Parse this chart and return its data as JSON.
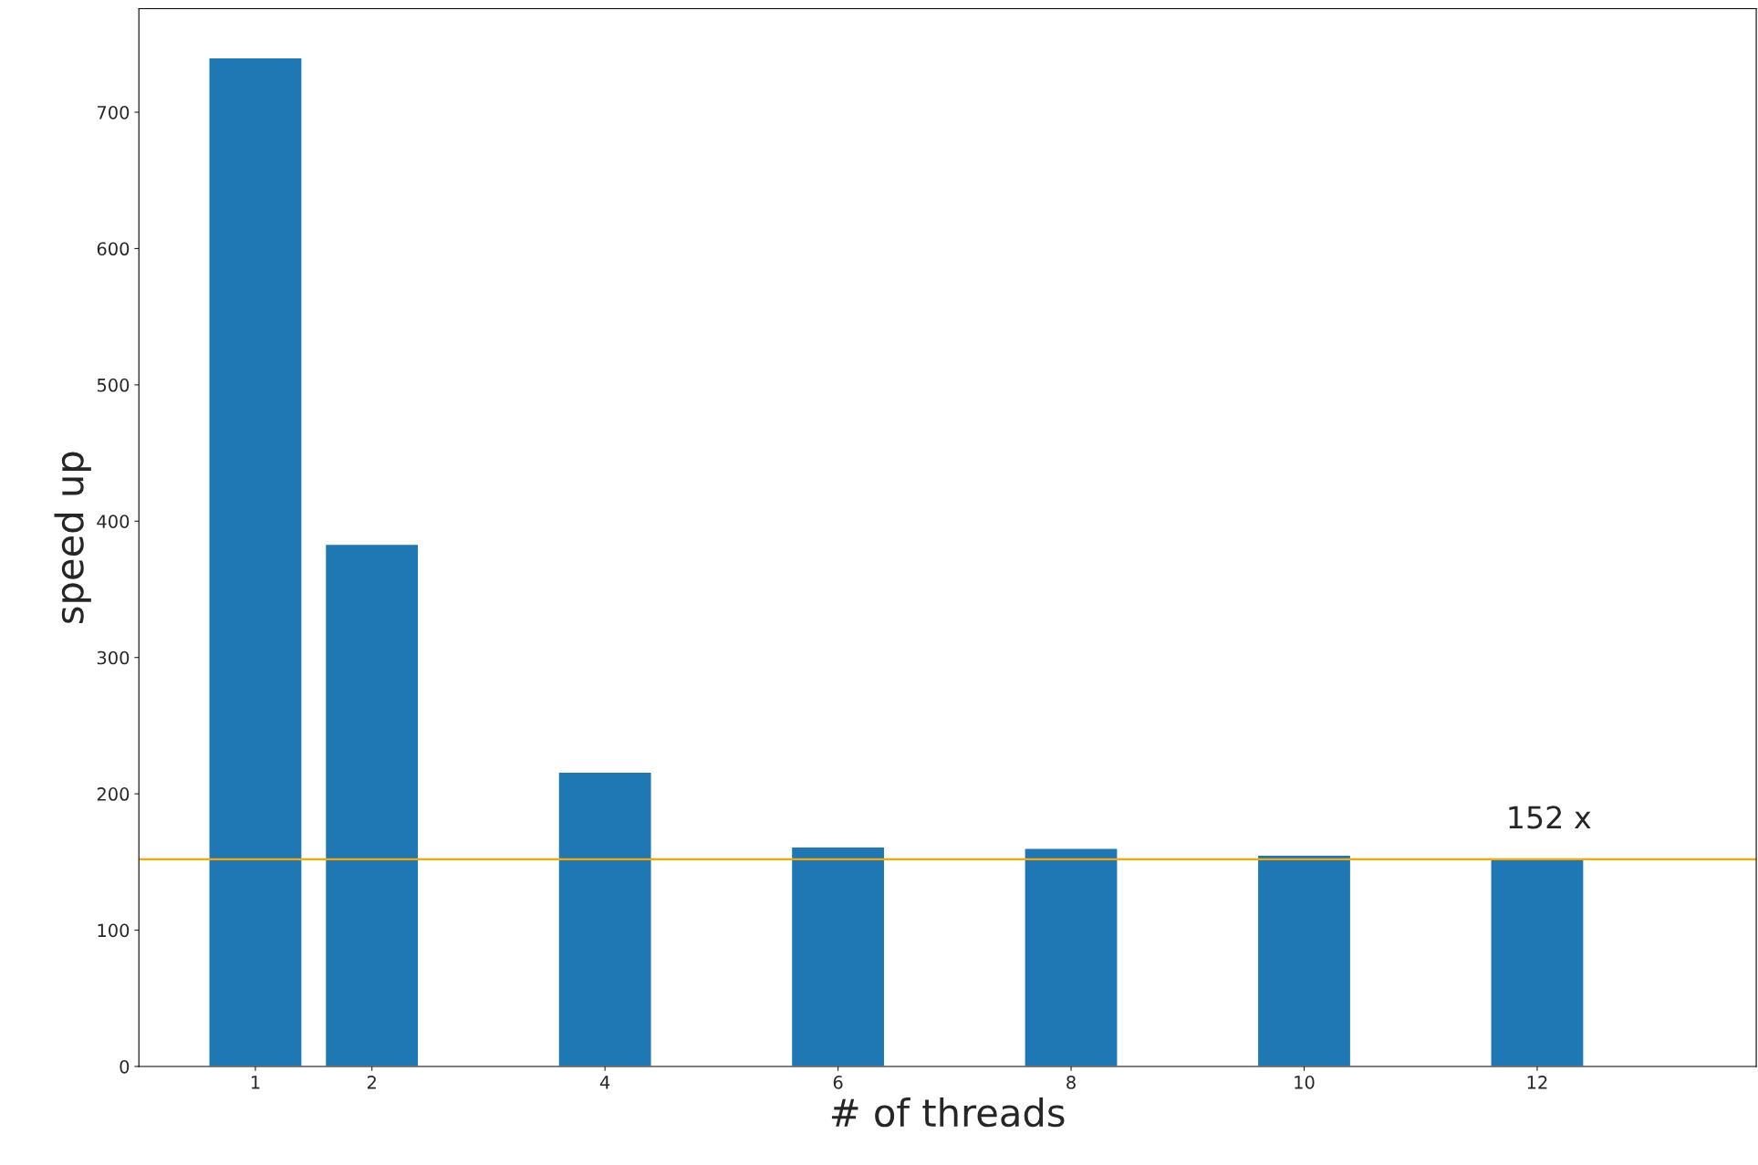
{
  "chart_data": {
    "type": "bar",
    "xlabel": "# of threads",
    "ylabel": "speed up",
    "x": [
      1,
      2,
      4,
      6,
      8,
      10,
      12
    ],
    "series": [
      {
        "color": "#1f77b4",
        "values": [
          740,
          383,
          216,
          161,
          160,
          155,
          152
        ]
      }
    ],
    "xlim": [
      0,
      13.88
    ],
    "xticks": [
      1,
      2,
      4,
      6,
      8,
      10,
      12
    ],
    "ylim": [
      0,
      776
    ],
    "yticks": [
      0,
      100,
      200,
      300,
      400,
      500,
      600,
      700
    ],
    "ref_lines": [
      {
        "axis": "y",
        "value": 152,
        "label": "152 x",
        "color": "#ffa500",
        "line_style": "solid"
      }
    ],
    "grid": false,
    "legend": false
  }
}
